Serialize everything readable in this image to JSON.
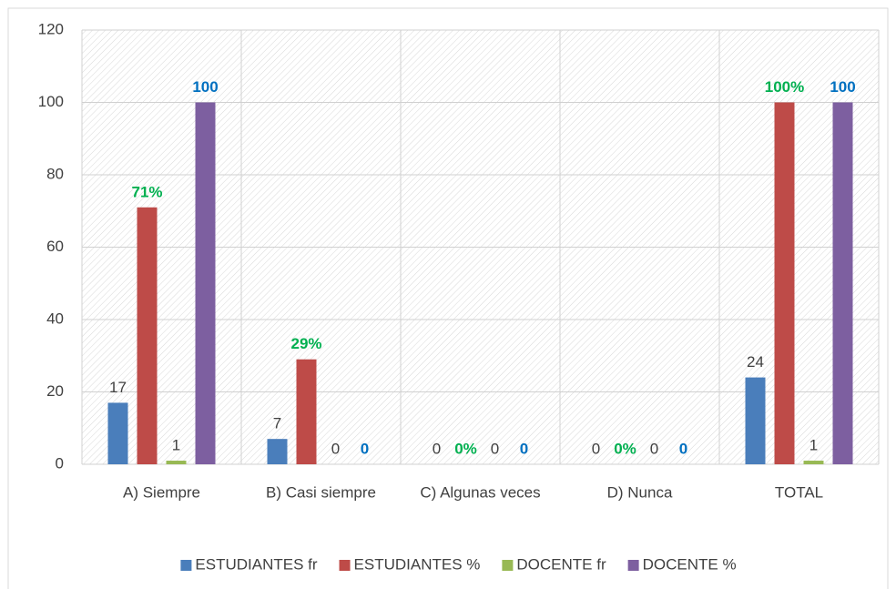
{
  "chart_data": {
    "type": "bar",
    "categories": [
      "A) Siempre",
      "B) Casi siempre",
      "C) Algunas veces",
      "D) Nunca",
      "TOTAL"
    ],
    "series": [
      {
        "name": "ESTUDIANTES fr",
        "color": "#4a7ebb",
        "label_color": "#404040",
        "label_bold": false,
        "values": [
          17,
          7,
          0,
          0,
          24
        ]
      },
      {
        "name": "ESTUDIANTES %",
        "color": "#be4b48",
        "label_color": "#00b050",
        "label_bold": true,
        "values": [
          71,
          29,
          0,
          0,
          100
        ],
        "value_labels": [
          "71%",
          "29%",
          "0%",
          "0%",
          "100%"
        ]
      },
      {
        "name": "DOCENTE fr",
        "color": "#98b954",
        "label_color": "#404040",
        "label_bold": false,
        "values": [
          1,
          0,
          0,
          0,
          1
        ]
      },
      {
        "name": "DOCENTE %",
        "color": "#7d5fa0",
        "label_color": "#0070c0",
        "label_bold": true,
        "values": [
          100,
          0,
          0,
          0,
          100
        ]
      }
    ],
    "ylim": [
      0,
      120
    ],
    "yticks": [
      0,
      20,
      40,
      60,
      80,
      100,
      120
    ],
    "grid": true,
    "legend": "bottom"
  }
}
